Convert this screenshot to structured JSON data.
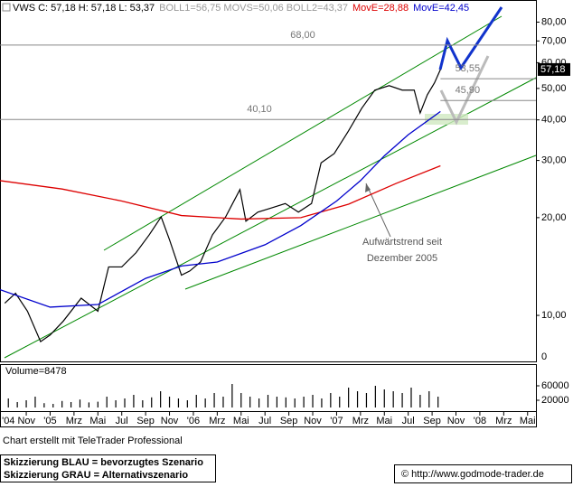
{
  "chart_data": {
    "type": "line",
    "series": [
      {
        "name": "VWS C: 57,18 H: 57,18 L: 53,37",
        "color": "#000000",
        "x": [
          -1.8,
          -0.9,
          0.1,
          1.2,
          2.0,
          3.1,
          4.6,
          6.0,
          6.9,
          8.0,
          9.2,
          10.3,
          11.3,
          12.0,
          13.0,
          13.7,
          14.6,
          15.6,
          16.7,
          17.9,
          18.4,
          19.4,
          20.5,
          21.7,
          22.8,
          23.9,
          24.7,
          25.8,
          27.0,
          28.1,
          29.2,
          30.4,
          31.5,
          32.5,
          33.0,
          33.6,
          34.2,
          34.7
        ],
        "values": [
          10.9,
          11.7,
          10.3,
          8.3,
          8.7,
          9.6,
          11.3,
          10.3,
          14.1,
          14.1,
          15.6,
          17.7,
          20.1,
          17.1,
          13.3,
          13.7,
          14.6,
          17.7,
          20.1,
          24.4,
          19.5,
          20.8,
          21.4,
          22.1,
          20.8,
          22.1,
          29.5,
          31.5,
          37,
          43.4,
          49.4,
          51,
          49.4,
          49.4,
          42,
          47.8,
          52,
          57.18
        ]
      },
      {
        "name": "MovE=28,88",
        "color": "#dd0000",
        "x": [
          -2.2,
          3,
          8,
          13,
          18,
          23,
          27,
          31,
          34.7
        ],
        "values": [
          26,
          24.5,
          22.5,
          20.3,
          19.8,
          20,
          22,
          25.5,
          28.88
        ]
      },
      {
        "name": "MovE=42,45",
        "color": "#0000cc",
        "x": [
          -2.2,
          2,
          6,
          10,
          13,
          16,
          20,
          23,
          26,
          28,
          30,
          32,
          34.7
        ],
        "values": [
          12,
          10.6,
          10.8,
          13,
          14.2,
          14.6,
          16.5,
          18.9,
          22.5,
          26,
          31,
          36,
          42.45
        ]
      }
    ],
    "bollinger_label": "BOLL1=56,75 MOVS=50,06 BOLL2=43,37",
    "log_scale": true,
    "xlim": [
      -2.2,
      42.7
    ],
    "ylim": [
      7.45,
      93.6
    ],
    "yticks": [
      {
        "value": 80,
        "label": "80,00"
      },
      {
        "value": 70,
        "label": "70,00"
      },
      {
        "value": 60,
        "label": "60,00"
      },
      {
        "value": 50,
        "label": "50,00"
      },
      {
        "value": 40,
        "label": "40,00"
      },
      {
        "value": 30,
        "label": "30,00"
      },
      {
        "value": 20,
        "label": "20,00"
      },
      {
        "value": 10,
        "label": "10,00"
      }
    ],
    "cut_axis_label": "0",
    "xticks": [
      {
        "value": 0,
        "label": "'04 Nov"
      },
      {
        "value": 2,
        "label": "'05"
      },
      {
        "value": 4,
        "label": "Mrz"
      },
      {
        "value": 6,
        "label": "Mai"
      },
      {
        "value": 8,
        "label": "Jul"
      },
      {
        "value": 10,
        "label": "Sep"
      },
      {
        "value": 12,
        "label": "Nov"
      },
      {
        "value": 14,
        "label": "'06"
      },
      {
        "value": 16,
        "label": "Mrz"
      },
      {
        "value": 18,
        "label": "Mai"
      },
      {
        "value": 20,
        "label": "Jul"
      },
      {
        "value": 22,
        "label": "Sep"
      },
      {
        "value": 24,
        "label": "Nov"
      },
      {
        "value": 26,
        "label": "'07"
      },
      {
        "value": 28,
        "label": "Mrz"
      },
      {
        "value": 30,
        "label": "Mai"
      },
      {
        "value": 32,
        "label": "Jul"
      },
      {
        "value": 34,
        "label": "Sep"
      },
      {
        "value": 36,
        "label": "Nov"
      },
      {
        "value": 38,
        "label": "'08"
      },
      {
        "value": 40,
        "label": "Mrz"
      },
      {
        "value": 42,
        "label": "Mai"
      }
    ],
    "levels": [
      {
        "value": 68,
        "label": "68,00",
        "full": true
      },
      {
        "value": 40.1,
        "label": "40,10",
        "full": true
      },
      {
        "value": 53.55,
        "label": "53,55",
        "full": false
      },
      {
        "value": 45.9,
        "label": "45,90",
        "full": false
      }
    ],
    "last_price": {
      "value": 57.18,
      "label": "57,18"
    },
    "annotation": [
      "Aufwärtstrend seit",
      "Dezember 2005"
    ],
    "volume": {
      "label": "Volume=8478",
      "color": "#000000",
      "x": [
        -1.5,
        -0.75,
        0,
        0.75,
        1.5,
        2.25,
        3,
        3.75,
        4.5,
        5.25,
        6,
        6.75,
        7.5,
        8.25,
        9,
        9.75,
        10.5,
        11.25,
        12,
        12.75,
        13.5,
        14.25,
        15,
        15.75,
        16.5,
        17.25,
        18,
        18.75,
        19.5,
        20.25,
        21,
        21.75,
        22.5,
        23.25,
        24,
        24.75,
        25.5,
        26.25,
        27,
        27.75,
        28.5,
        29.25,
        30,
        30.75,
        31.5,
        32.25,
        33,
        33.75,
        34.5
      ],
      "values": [
        25000,
        15000,
        20000,
        30000,
        12000,
        10000,
        18000,
        15000,
        22000,
        14000,
        16000,
        30000,
        20000,
        25000,
        35000,
        20000,
        28000,
        45000,
        30000,
        25000,
        20000,
        35000,
        25000,
        40000,
        30000,
        65000,
        40000,
        30000,
        25000,
        35000,
        30000,
        28000,
        25000,
        30000,
        35000,
        25000,
        40000,
        30000,
        55000,
        45000,
        40000,
        60000,
        50000,
        45000,
        40000,
        55000,
        35000,
        45000,
        30000
      ],
      "ylim": [
        0,
        115000
      ],
      "yticks": [
        60000,
        20000
      ]
    },
    "footer": {
      "credit": "Chart erstellt mit TeleTrader Professional",
      "legend_blue": "Skizzierung BLAU = bevorzugtes Szenario",
      "legend_grey": "Skizzierung GRAU = Alternativszenario",
      "url": "© http://www.godmode-trader.de"
    }
  }
}
